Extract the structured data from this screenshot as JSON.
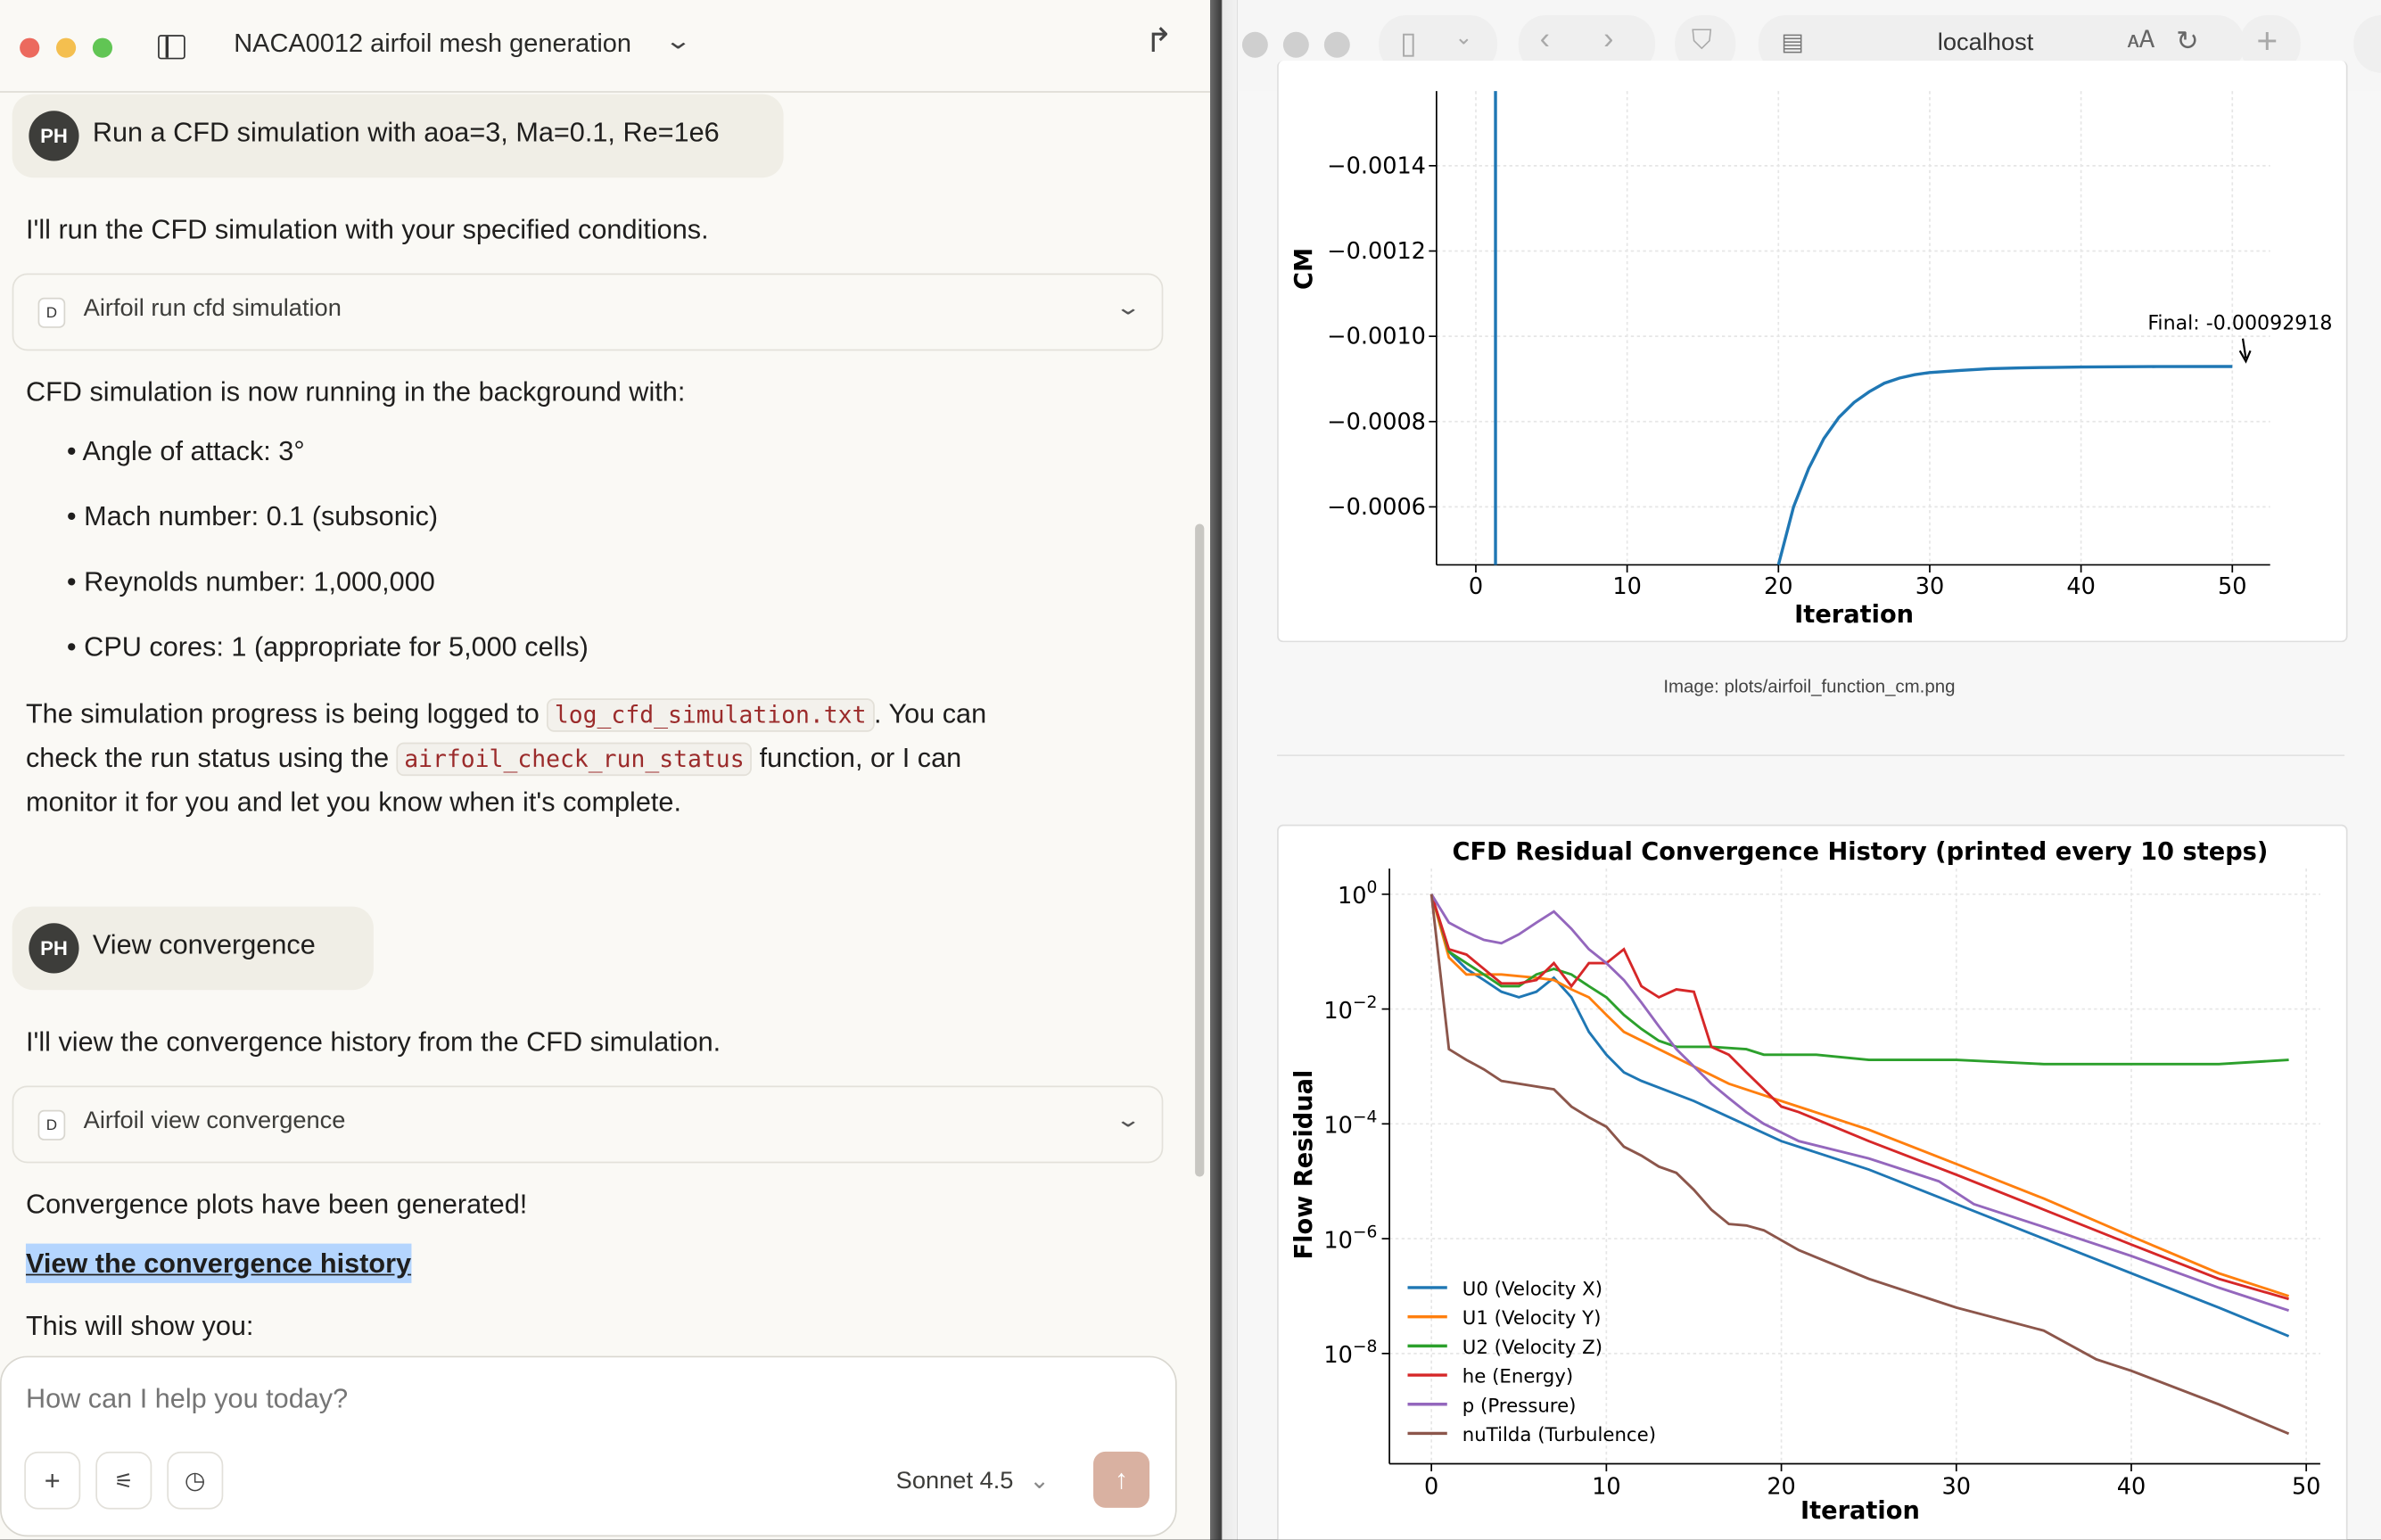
{
  "left_panel": {
    "window_title": "NACA0012 airfoil mesh generation",
    "messages": [
      {
        "role": "user",
        "avatar": "PH",
        "text": "Run a CFD simulation with aoa=3, Ma=0.1, Re=1e6"
      },
      {
        "role": "assistant",
        "text": "I'll run the CFD simulation with your specified conditions."
      },
      {
        "role": "tool",
        "badge": "D",
        "label": "Airfoil run cfd simulation"
      },
      {
        "role": "assistant",
        "text": "CFD simulation is now running in the background with:",
        "bullets": [
          "Angle of attack: 3°",
          "Mach number: 0.1 (subsonic)",
          "Reynolds number: 1,000,000",
          "CPU cores: 1 (appropriate for 5,000 cells)"
        ],
        "progress_line_1": "The simulation progress is being logged to ",
        "log_file": "log_cfd_simulation.txt",
        "progress_line_1b": ". You can",
        "progress_line_2": "check the run status using the ",
        "function_name": "airfoil_check_run_status",
        "progress_line_2b": " function, or I can",
        "progress_line_3": "monitor it for you and let you know when it's complete."
      },
      {
        "role": "user",
        "avatar": "PH",
        "text": "View convergence"
      },
      {
        "role": "assistant",
        "text": "I'll view the convergence history from the CFD simulation."
      },
      {
        "role": "tool",
        "badge": "D",
        "label": "Airfoil view convergence"
      },
      {
        "role": "assistant",
        "text": "Convergence plots have been generated!",
        "link": "View the convergence history",
        "after": "This will show you:"
      }
    ],
    "composer": {
      "placeholder": "How can I help you today?",
      "model": "Sonnet 4.5",
      "send_color": "#d9b1a1"
    }
  },
  "browser": {
    "address": "localhost",
    "image_caption": "Image: plots/airfoil_function_cm.png"
  },
  "chart_data": [
    {
      "type": "line",
      "title": "",
      "xlabel": "Iteration",
      "ylabel": "CM",
      "xlim": [
        -2.6,
        52.5
      ],
      "ylim": [
        -0.000464,
        -0.001575
      ],
      "y_inverted": true,
      "xticks": [
        0,
        10,
        20,
        30,
        40,
        50
      ],
      "yticks": [
        -0.0014,
        -0.0012,
        -0.001,
        -0.0008,
        -0.0006
      ],
      "ytick_labels": [
        "−0.0014",
        "−0.0012",
        "−0.0010",
        "−0.0008",
        "−0.0006"
      ],
      "grid": true,
      "color": "#1f77b4",
      "vertical_line_x": 1.3,
      "x": [
        20,
        21,
        22,
        23,
        24,
        25,
        26,
        27,
        28,
        29,
        30,
        32,
        34,
        36,
        38,
        40,
        45,
        50
      ],
      "y": [
        -0.000464,
        -0.0006,
        -0.00069,
        -0.00076,
        -0.00081,
        -0.000845,
        -0.00087,
        -0.00089,
        -0.000902,
        -0.00091,
        -0.000915,
        -0.00092,
        -0.000924,
        -0.000926,
        -0.000927,
        -0.000928,
        -0.000929,
        -0.00092918
      ],
      "annotation": "Final: -0.00092918"
    },
    {
      "type": "line",
      "title": "CFD Residual Convergence History (printed every 10 steps)",
      "xlabel": "Iteration",
      "ylabel": "Flow Residual",
      "yscale": "log",
      "xlim": [
        -2.4,
        50.8
      ],
      "ylim": [
        1.2e-10,
        2.8
      ],
      "xticks": [
        0,
        10,
        20,
        30,
        40,
        50
      ],
      "yticks": [
        1,
        0.01,
        0.0001,
        1e-06,
        1e-08
      ],
      "grid": true,
      "legend": "lower-left",
      "series": [
        {
          "name": "U0 (Velocity X)",
          "color": "#1f77b4",
          "x": [
            0,
            1,
            2,
            3,
            4,
            5,
            6,
            7,
            8,
            9,
            10,
            11,
            12,
            15,
            20,
            25,
            30,
            35,
            40,
            45,
            49
          ],
          "y": [
            1,
            0.1,
            0.05,
            0.032,
            0.02,
            0.016,
            0.02,
            0.035,
            0.016,
            0.004,
            0.0016,
            0.00079,
            0.00056,
            0.00025,
            5e-05,
            1.6e-05,
            4e-06,
            1e-06,
            2.5e-07,
            6.3e-08,
            2e-08
          ]
        },
        {
          "name": "U1 (Velocity Y)",
          "color": "#ff7f0e",
          "x": [
            0,
            1,
            2,
            4,
            6,
            7,
            8,
            9,
            10,
            11,
            13,
            15,
            17,
            20,
            25,
            30,
            35,
            40,
            45,
            49
          ],
          "y": [
            1,
            0.079,
            0.04,
            0.04,
            0.035,
            0.032,
            0.022,
            0.016,
            0.0079,
            0.004,
            0.002,
            0.001,
            0.0005,
            0.00025,
            7.9e-05,
            2e-05,
            5e-06,
            1.1e-06,
            2.5e-07,
            1e-07
          ]
        },
        {
          "name": "U2 (Velocity Z)",
          "color": "#2ca02c",
          "x": [
            0,
            1,
            2,
            3,
            4,
            5,
            6,
            7,
            8,
            9,
            10,
            11,
            12,
            13,
            14,
            16,
            18,
            19,
            22,
            25,
            30,
            35,
            40,
            45,
            49
          ],
          "y": [
            1,
            0.1,
            0.063,
            0.04,
            0.025,
            0.025,
            0.04,
            0.05,
            0.04,
            0.025,
            0.016,
            0.0079,
            0.0045,
            0.0028,
            0.0022,
            0.0022,
            0.002,
            0.0016,
            0.0016,
            0.0013,
            0.0013,
            0.0011,
            0.0011,
            0.0011,
            0.0013
          ]
        },
        {
          "name": "he (Energy)",
          "color": "#d62728",
          "x": [
            0,
            1,
            2,
            3,
            4,
            5,
            6,
            7,
            8,
            9,
            10,
            11,
            12,
            13,
            14,
            15,
            16,
            17,
            18,
            19,
            20,
            21,
            25,
            30,
            35,
            40,
            45,
            49
          ],
          "y": [
            1,
            0.11,
            0.089,
            0.05,
            0.028,
            0.028,
            0.032,
            0.063,
            0.025,
            0.063,
            0.063,
            0.11,
            0.025,
            0.016,
            0.022,
            0.02,
            0.0022,
            0.0016,
            0.00079,
            0.0004,
            0.0002,
            0.00016,
            5e-05,
            1.3e-05,
            3.2e-06,
            7.9e-07,
            2e-07,
            8.9e-08
          ]
        },
        {
          "name": "p (Pressure)",
          "color": "#9467bd",
          "x": [
            0,
            1,
            2,
            3,
            4,
            5,
            6,
            7,
            8,
            9,
            10,
            11,
            12,
            13,
            14,
            15,
            16,
            17,
            18,
            19,
            21,
            25,
            29,
            31,
            35,
            40,
            45,
            49
          ],
          "y": [
            1,
            0.32,
            0.22,
            0.16,
            0.14,
            0.2,
            0.32,
            0.5,
            0.25,
            0.11,
            0.063,
            0.032,
            0.013,
            0.005,
            0.002,
            0.001,
            0.0005,
            0.00028,
            0.00016,
            0.0001,
            5e-05,
            2.5e-05,
            1e-05,
            4e-06,
            1.6e-06,
            5e-07,
            1.4e-07,
            5.6e-08
          ]
        },
        {
          "name": "nuTilda (Turbulence)",
          "color": "#8c564b",
          "x": [
            0,
            1,
            2,
            3,
            4,
            7,
            8,
            9,
            10,
            11,
            12,
            13,
            14,
            15,
            16,
            17,
            18,
            19,
            21,
            25,
            30,
            35,
            38,
            40,
            45,
            49
          ],
          "y": [
            1,
            0.002,
            0.0013,
            0.00089,
            0.00056,
            0.0004,
            0.0002,
            0.00013,
            8.9e-05,
            4e-05,
            2.8e-05,
            1.8e-05,
            1.4e-05,
            7.1e-06,
            3.2e-06,
            1.8e-06,
            1.7e-06,
            1.4e-06,
            6.3e-07,
            2e-07,
            6.3e-08,
            2.5e-08,
            7.9e-09,
            5e-09,
            1.3e-09,
            4e-10
          ]
        }
      ]
    }
  ]
}
